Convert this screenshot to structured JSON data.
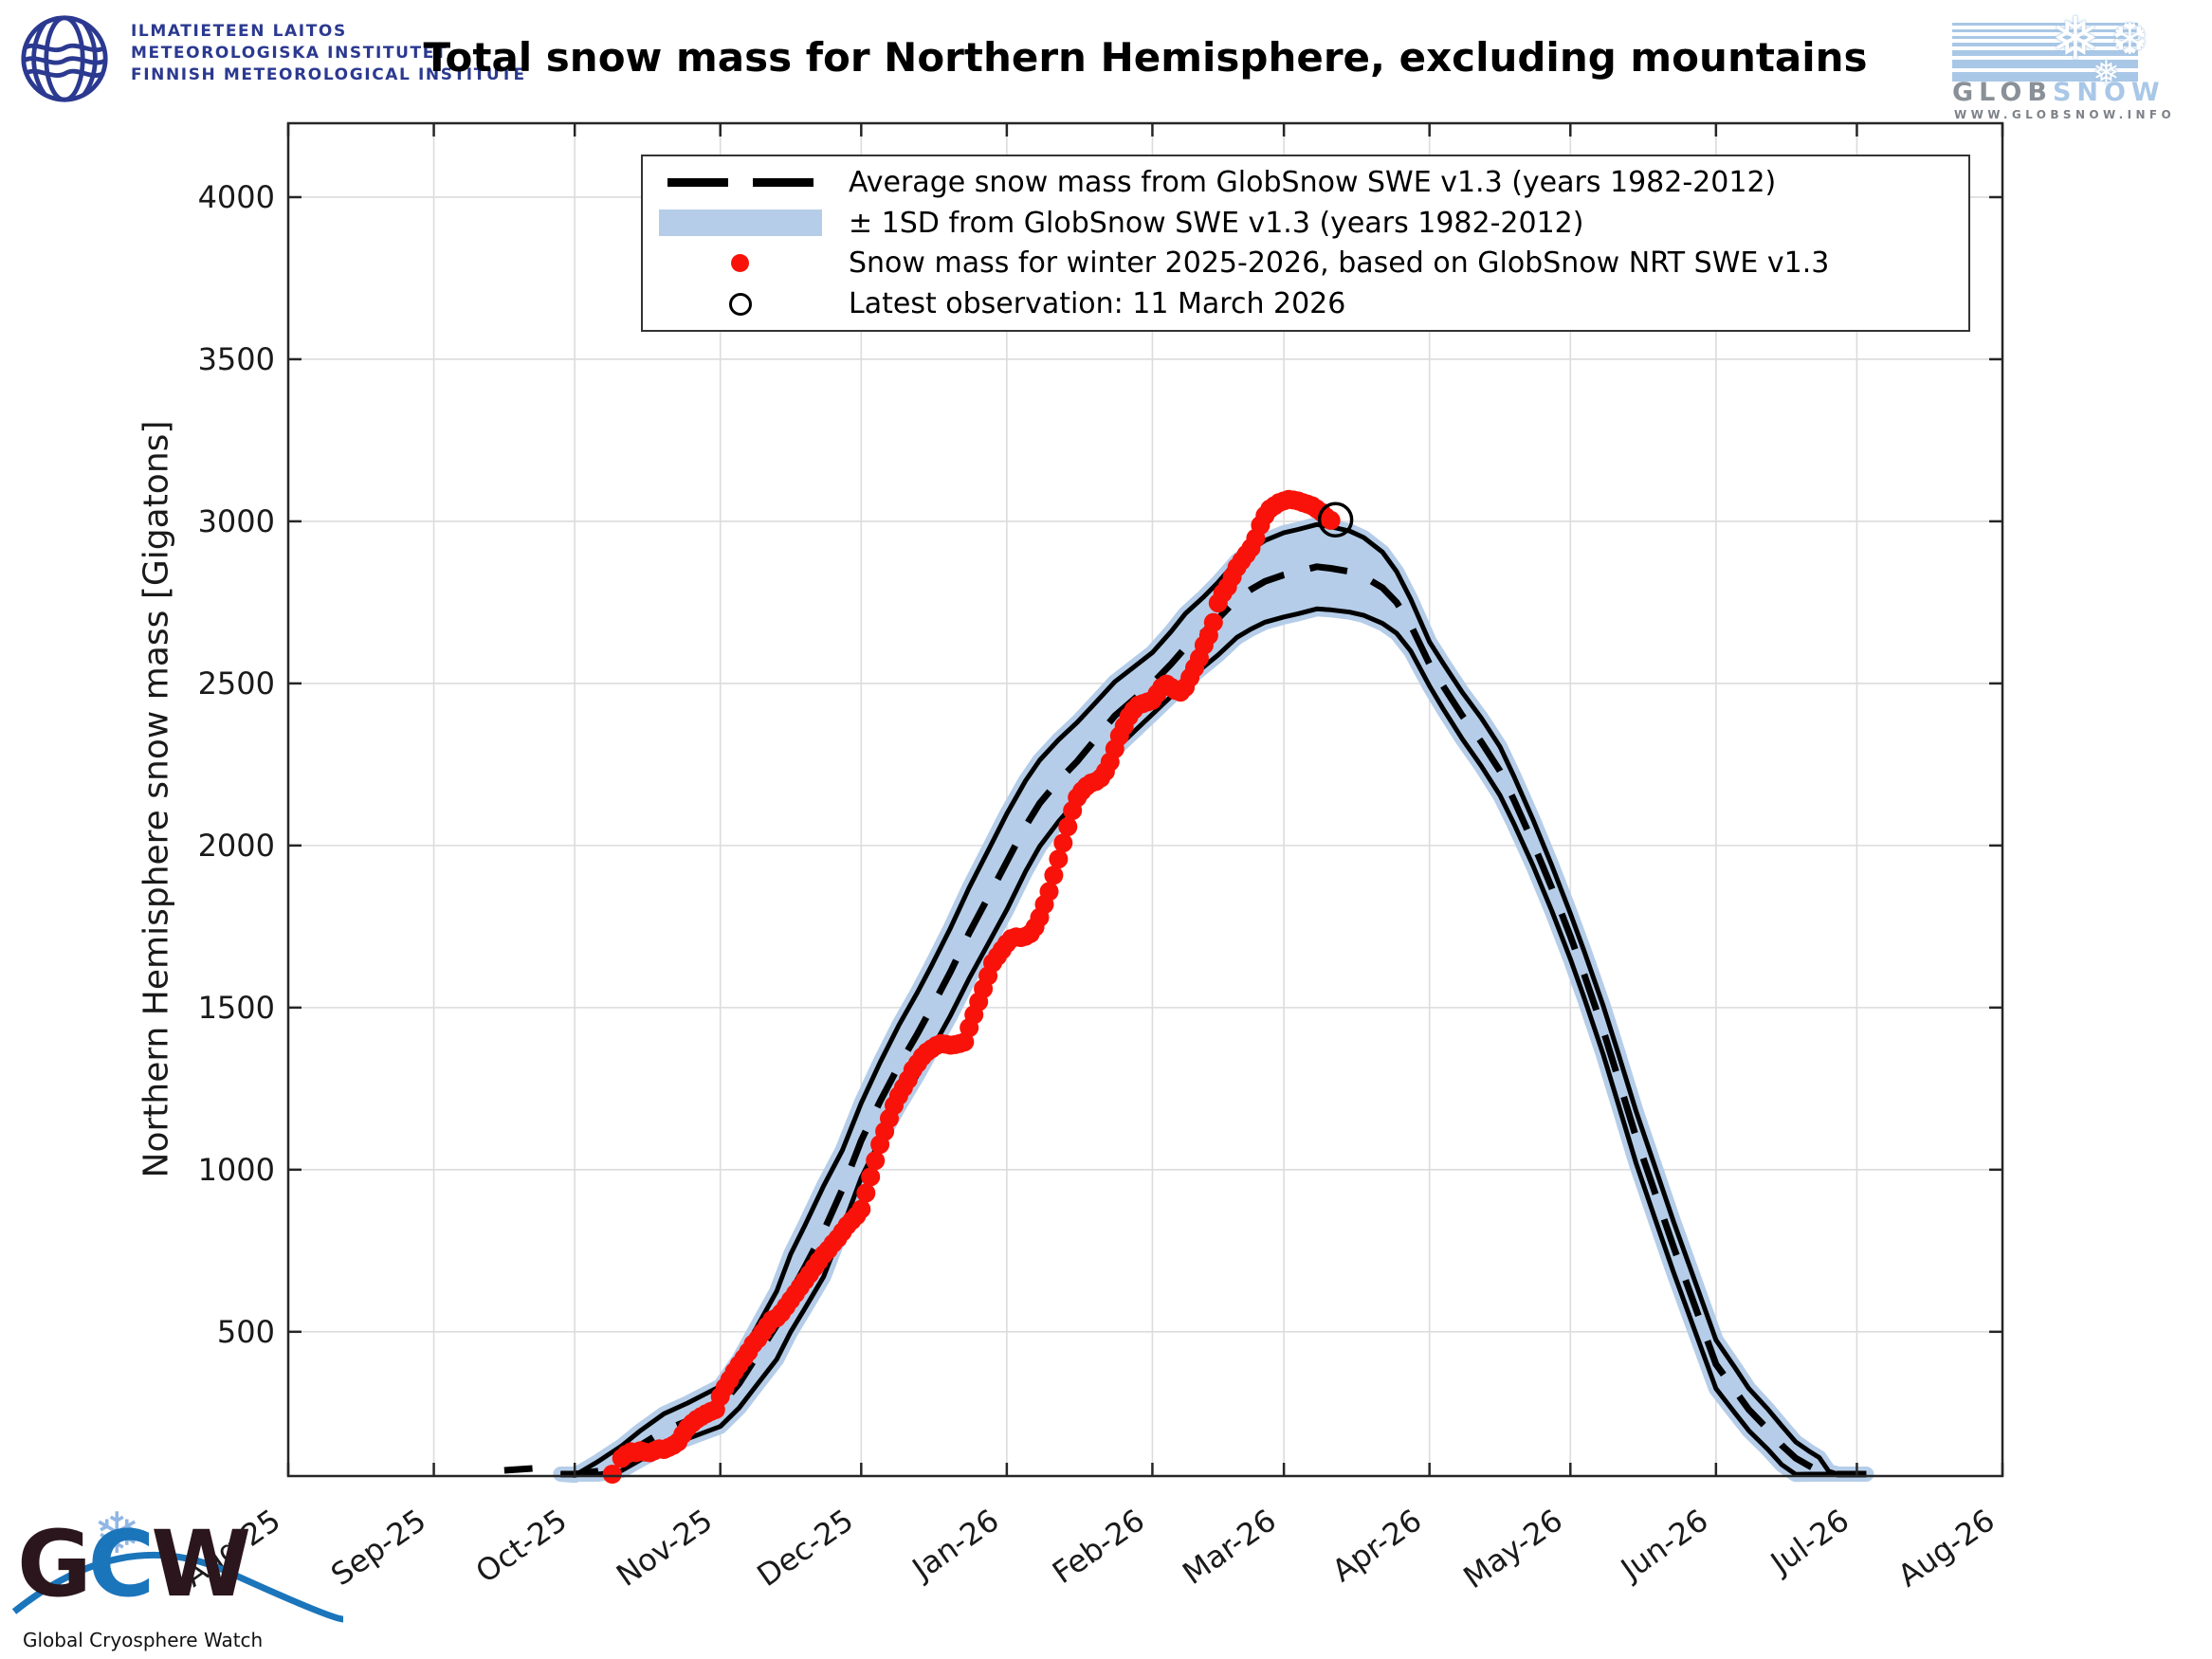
{
  "header": {
    "fmi": {
      "line1": "ILMATIETEEN LAITOS",
      "line2": "METEOROLOGISKA INSTITUTET",
      "line3": "FINNISH METEOROLOGICAL INSTITUTE"
    },
    "title": "Total snow mass for Northern Hemisphere, excluding mountains",
    "globsnow": {
      "name_grey": "GLOB",
      "name_blue": "SNOW",
      "url": "WWW.GLOBSNOW.INFO",
      "flake_large": "❅",
      "flake_medium": "❆",
      "flake_small": "❅"
    }
  },
  "legend": {
    "items": [
      {
        "label": "Average snow mass from GlobSnow SWE v1.3 (years 1982-2012)",
        "marker": "dashed-line"
      },
      {
        "label": "± 1SD from GlobSnow SWE v1.3 (years 1982-2012)",
        "marker": "band-patch"
      },
      {
        "label": "Snow mass for winter 2025-2026, based on GlobSnow NRT SWE v1.3",
        "marker": "red-dot"
      },
      {
        "label": "Latest observation: 11 March 2026",
        "marker": "open-circle"
      }
    ]
  },
  "axes": {
    "ylabel": "Northern Hemisphere snow mass [Gigatons]",
    "yticks": [
      500,
      1000,
      1500,
      2000,
      2500,
      3000,
      3500,
      4000
    ],
    "xticks": [
      "Aug-25",
      "Sep-25",
      "Oct-25",
      "Nov-25",
      "Dec-25",
      "Jan-26",
      "Feb-26",
      "Mar-26",
      "Apr-26",
      "May-26",
      "Jun-26",
      "Jul-26",
      "Aug-26"
    ]
  },
  "footer": {
    "gcw_g": "G",
    "gcw_c": "C",
    "gcw_w": "W",
    "caption": "Global Cryosphere Watch",
    "flake": "❄"
  },
  "colors": {
    "band": "#b5cde8",
    "red": "#f81209",
    "black": "#000000",
    "grid": "#dcdcdc",
    "axis": "#262626",
    "fmi_blue": "#2b3990",
    "globsnow_blue": "#a9c7e6",
    "globsnow_grey": "#8a9097",
    "gcw_blue": "#1b75bb",
    "gcw_dark": "#2a161c"
  },
  "chart_data": {
    "type": "line",
    "title": "Total snow mass for Northern Hemisphere, excluding mountains",
    "ylabel": "Northern Hemisphere snow mass [Gigatons]",
    "ylim": [
      55,
      4228
    ],
    "x_axis": {
      "unit": "days since 1 Aug 2025",
      "tick_labels": [
        "Aug-25",
        "Sep-25",
        "Oct-25",
        "Nov-25",
        "Dec-25",
        "Jan-26",
        "Feb-26",
        "Mar-26",
        "Apr-26",
        "May-26",
        "Jun-26",
        "Jul-26",
        "Aug-26"
      ],
      "grid": true,
      "label_rotation_deg": -35
    },
    "series_notes": "climatology = [day, mean Gt, sd Gt]; observations = [day, Gt]",
    "climatology": [
      [
        58,
        10,
        5
      ],
      [
        61,
        35,
        22
      ],
      [
        66,
        70,
        30
      ],
      [
        71,
        110,
        38
      ],
      [
        75,
        150,
        45
      ],
      [
        80,
        195,
        52
      ],
      [
        85,
        225,
        55
      ],
      [
        92,
        270,
        62
      ],
      [
        96,
        340,
        75
      ],
      [
        100,
        430,
        90
      ],
      [
        104,
        520,
        105
      ],
      [
        107,
        620,
        120
      ],
      [
        110,
        700,
        128
      ],
      [
        114,
        810,
        140
      ],
      [
        118,
        940,
        120
      ],
      [
        122,
        1090,
        115
      ],
      [
        126,
        1210,
        120
      ],
      [
        130,
        1320,
        125
      ],
      [
        134,
        1420,
        128
      ],
      [
        137,
        1500,
        130
      ],
      [
        141,
        1610,
        135
      ],
      [
        145,
        1730,
        140
      ],
      [
        149,
        1840,
        144
      ],
      [
        153,
        1950,
        148
      ],
      [
        157,
        2060,
        140
      ],
      [
        160,
        2130,
        133
      ],
      [
        164,
        2200,
        126
      ],
      [
        168,
        2260,
        120
      ],
      [
        172,
        2330,
        112
      ],
      [
        176,
        2400,
        105
      ],
      [
        180,
        2450,
        100
      ],
      [
        184,
        2500,
        95
      ],
      [
        188,
        2560,
        100
      ],
      [
        191,
        2610,
        105
      ],
      [
        195,
        2660,
        108
      ],
      [
        198,
        2700,
        112
      ],
      [
        202,
        2760,
        118
      ],
      [
        205,
        2790,
        122
      ],
      [
        208,
        2815,
        126
      ],
      [
        212,
        2835,
        130
      ],
      [
        215,
        2845,
        130
      ],
      [
        219,
        2860,
        130
      ],
      [
        222,
        2855,
        128
      ],
      [
        226,
        2845,
        125
      ],
      [
        229,
        2830,
        120
      ],
      [
        233,
        2795,
        110
      ],
      [
        236,
        2750,
        95
      ],
      [
        239,
        2680,
        80
      ],
      [
        243,
        2560,
        68
      ],
      [
        246,
        2490,
        70
      ],
      [
        250,
        2400,
        72
      ],
      [
        254,
        2320,
        74
      ],
      [
        258,
        2230,
        75
      ],
      [
        261,
        2140,
        73
      ],
      [
        265,
        2010,
        71
      ],
      [
        269,
        1870,
        70
      ],
      [
        273,
        1720,
        70
      ],
      [
        276,
        1600,
        72
      ],
      [
        280,
        1430,
        75
      ],
      [
        283,
        1290,
        78
      ],
      [
        287,
        1100,
        80
      ],
      [
        291,
        930,
        80
      ],
      [
        295,
        760,
        78
      ],
      [
        299,
        600,
        77
      ],
      [
        304,
        400,
        75
      ],
      [
        308,
        320,
        70
      ],
      [
        311,
        260,
        65
      ],
      [
        315,
        200,
        62
      ],
      [
        318,
        150,
        60
      ],
      [
        321,
        110,
        50
      ],
      [
        324,
        85,
        45
      ],
      [
        326,
        70,
        42
      ],
      [
        328,
        38,
        32
      ],
      [
        330,
        28,
        25
      ],
      [
        332,
        18,
        14
      ],
      [
        334,
        12,
        10
      ],
      [
        336,
        6,
        4
      ]
    ],
    "sep_blip": {
      "day_start": 46,
      "day_end": 52,
      "value": 15
    },
    "observations": [
      [
        69,
        55
      ],
      [
        71,
        110
      ],
      [
        72,
        122
      ],
      [
        73,
        130
      ],
      [
        74,
        127
      ],
      [
        75,
        133
      ],
      [
        76,
        129
      ],
      [
        77,
        127
      ],
      [
        78,
        133
      ],
      [
        79,
        139
      ],
      [
        80,
        137
      ],
      [
        81,
        143
      ],
      [
        82,
        150
      ],
      [
        83,
        160
      ],
      [
        84,
        183
      ],
      [
        85,
        203
      ],
      [
        86,
        218
      ],
      [
        87,
        230
      ],
      [
        88,
        239
      ],
      [
        89,
        247
      ],
      [
        90,
        254
      ],
      [
        91,
        260
      ],
      [
        92,
        300
      ],
      [
        93,
        328
      ],
      [
        94,
        352
      ],
      [
        95,
        377
      ],
      [
        96,
        398
      ],
      [
        97,
        418
      ],
      [
        98,
        438
      ],
      [
        99,
        462
      ],
      [
        100,
        478
      ],
      [
        101,
        498
      ],
      [
        102,
        518
      ],
      [
        103,
        537
      ],
      [
        104,
        543
      ],
      [
        105,
        558
      ],
      [
        106,
        578
      ],
      [
        107,
        598
      ],
      [
        108,
        618
      ],
      [
        109,
        638
      ],
      [
        110,
        658
      ],
      [
        111,
        678
      ],
      [
        112,
        698
      ],
      [
        113,
        718
      ],
      [
        114,
        738
      ],
      [
        115,
        753
      ],
      [
        116,
        772
      ],
      [
        117,
        788
      ],
      [
        118,
        808
      ],
      [
        119,
        828
      ],
      [
        120,
        843
      ],
      [
        121,
        858
      ],
      [
        122,
        878
      ],
      [
        123,
        928
      ],
      [
        124,
        978
      ],
      [
        125,
        1028
      ],
      [
        126,
        1078
      ],
      [
        127,
        1118
      ],
      [
        128,
        1158
      ],
      [
        129,
        1198
      ],
      [
        130,
        1228
      ],
      [
        131,
        1253
      ],
      [
        132,
        1278
      ],
      [
        133,
        1308
      ],
      [
        134,
        1328
      ],
      [
        135,
        1348
      ],
      [
        136,
        1363
      ],
      [
        137,
        1373
      ],
      [
        138,
        1383
      ],
      [
        139,
        1389
      ],
      [
        140,
        1387
      ],
      [
        141,
        1384
      ],
      [
        142,
        1386
      ],
      [
        143,
        1389
      ],
      [
        144,
        1394
      ],
      [
        145,
        1438
      ],
      [
        146,
        1478
      ],
      [
        147,
        1518
      ],
      [
        148,
        1558
      ],
      [
        149,
        1598
      ],
      [
        150,
        1638
      ],
      [
        151,
        1658
      ],
      [
        152,
        1678
      ],
      [
        153,
        1698
      ],
      [
        154,
        1713
      ],
      [
        155,
        1718
      ],
      [
        156,
        1716
      ],
      [
        157,
        1720
      ],
      [
        158,
        1728
      ],
      [
        159,
        1748
      ],
      [
        160,
        1778
      ],
      [
        161,
        1818
      ],
      [
        162,
        1858
      ],
      [
        163,
        1908
      ],
      [
        164,
        1958
      ],
      [
        165,
        2008
      ],
      [
        166,
        2058
      ],
      [
        167,
        2108
      ],
      [
        168,
        2148
      ],
      [
        169,
        2168
      ],
      [
        170,
        2183
      ],
      [
        171,
        2193
      ],
      [
        172,
        2198
      ],
      [
        173,
        2208
      ],
      [
        174,
        2228
      ],
      [
        175,
        2258
      ],
      [
        176,
        2298
      ],
      [
        177,
        2338
      ],
      [
        178,
        2368
      ],
      [
        179,
        2398
      ],
      [
        180,
        2418
      ],
      [
        181,
        2433
      ],
      [
        182,
        2438
      ],
      [
        183,
        2443
      ],
      [
        184,
        2448
      ],
      [
        185,
        2468
      ],
      [
        186,
        2488
      ],
      [
        187,
        2498
      ],
      [
        188,
        2488
      ],
      [
        189,
        2478
      ],
      [
        190,
        2473
      ],
      [
        191,
        2488
      ],
      [
        192,
        2518
      ],
      [
        193,
        2548
      ],
      [
        194,
        2578
      ],
      [
        195,
        2618
      ],
      [
        196,
        2648
      ],
      [
        197,
        2688
      ],
      [
        198,
        2748
      ],
      [
        199,
        2778
      ],
      [
        200,
        2798
      ],
      [
        201,
        2828
      ],
      [
        202,
        2858
      ],
      [
        203,
        2878
      ],
      [
        204,
        2898
      ],
      [
        205,
        2918
      ],
      [
        206,
        2948
      ],
      [
        207,
        2988
      ],
      [
        208,
        3018
      ],
      [
        209,
        3038
      ],
      [
        210,
        3048
      ],
      [
        211,
        3058
      ],
      [
        212,
        3063
      ],
      [
        213,
        3068
      ],
      [
        214,
        3066
      ],
      [
        215,
        3063
      ],
      [
        216,
        3058
      ],
      [
        217,
        3053
      ],
      [
        218,
        3048
      ],
      [
        219,
        3038
      ],
      [
        220,
        3028
      ],
      [
        221,
        3013
      ],
      [
        222,
        3003
      ]
    ],
    "latest_observation": {
      "day": 223,
      "value": 3005,
      "date": "11 March 2026"
    },
    "legend_position": "top-center-inside",
    "grid": true
  }
}
